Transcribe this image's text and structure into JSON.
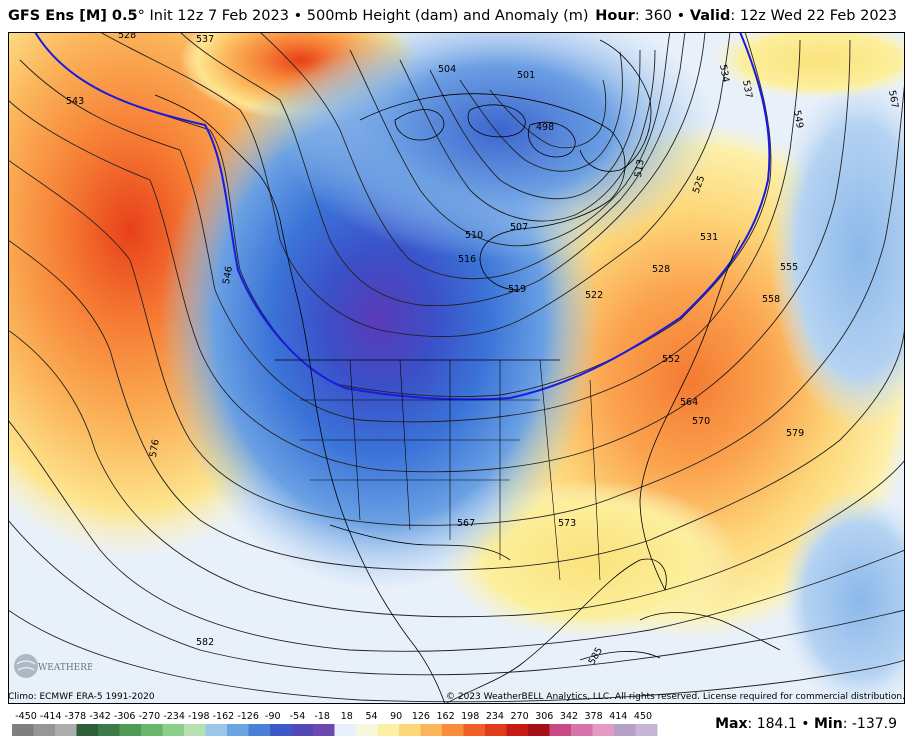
{
  "header": {
    "model": "GFS Ens [M] 0.5",
    "degree": "°",
    "init": "Init 12z 7 Feb 2023",
    "sep": "•",
    "field": "500mb Height (dam) and Anomaly (m)",
    "hour_label": "Hour",
    "hour_value": "360",
    "valid_label": "Valid",
    "valid_value": "12z Wed 22 Feb 2023"
  },
  "footer": {
    "climo": "Climo: ECMWF ERA-5 1991-2020",
    "copyright": "© 2023 WeatherBELL Analytics, LLC. All rights reserved. License required for commercial distribution.",
    "max_label": "Max",
    "max_value": "184.1",
    "min_label": "Min",
    "min_value": "-137.9",
    "sep": "•"
  },
  "logo": {
    "text": "WEATHERBELL",
    "icon": "weatherbell-logo-icon"
  },
  "colorbar": {
    "labels": [
      "-450",
      "-414",
      "-378",
      "-342",
      "-306",
      "-270",
      "-234",
      "-198",
      "-162",
      "-126",
      "-90",
      "-54",
      "-18",
      "18",
      "54",
      "90",
      "126",
      "162",
      "198",
      "234",
      "270",
      "306",
      "342",
      "378",
      "414",
      "450"
    ],
    "colors": [
      "#7f7f7f",
      "#969696",
      "#adadad",
      "#2e5e3a",
      "#3d7a47",
      "#4f9a57",
      "#68b56c",
      "#8bcf8b",
      "#b6e0b2",
      "#9ac6ea",
      "#6aa6e3",
      "#4a7fd8",
      "#3d58c8",
      "#5347b5",
      "#6a4aaf",
      "#e8f1fb",
      "#f7f7dc",
      "#fbf0a8",
      "#fdd77a",
      "#fbb45a",
      "#f88d3e",
      "#ef5f27",
      "#e03b1a",
      "#c81a14",
      "#a50f15",
      "#c74a83",
      "#d673a8",
      "#e39bc4",
      "#b5a0c8",
      "#c7b5d8"
    ]
  },
  "map": {
    "contour_labels": [
      {
        "text": "528"
      },
      {
        "text": "537"
      },
      {
        "text": "543"
      },
      {
        "text": "546"
      },
      {
        "text": "576"
      },
      {
        "text": "582"
      },
      {
        "text": "504"
      },
      {
        "text": "501"
      },
      {
        "text": "498"
      },
      {
        "text": "507"
      },
      {
        "text": "510"
      },
      {
        "text": "516"
      },
      {
        "text": "519"
      },
      {
        "text": "522"
      },
      {
        "text": "513"
      },
      {
        "text": "525"
      },
      {
        "text": "531"
      },
      {
        "text": "528"
      },
      {
        "text": "534"
      },
      {
        "text": "537"
      },
      {
        "text": "549"
      },
      {
        "text": "567"
      },
      {
        "text": "555"
      },
      {
        "text": "558"
      },
      {
        "text": "552"
      },
      {
        "text": "564"
      },
      {
        "text": "570"
      },
      {
        "text": "579"
      },
      {
        "text": "567"
      },
      {
        "text": "573"
      },
      {
        "text": "585"
      }
    ]
  }
}
